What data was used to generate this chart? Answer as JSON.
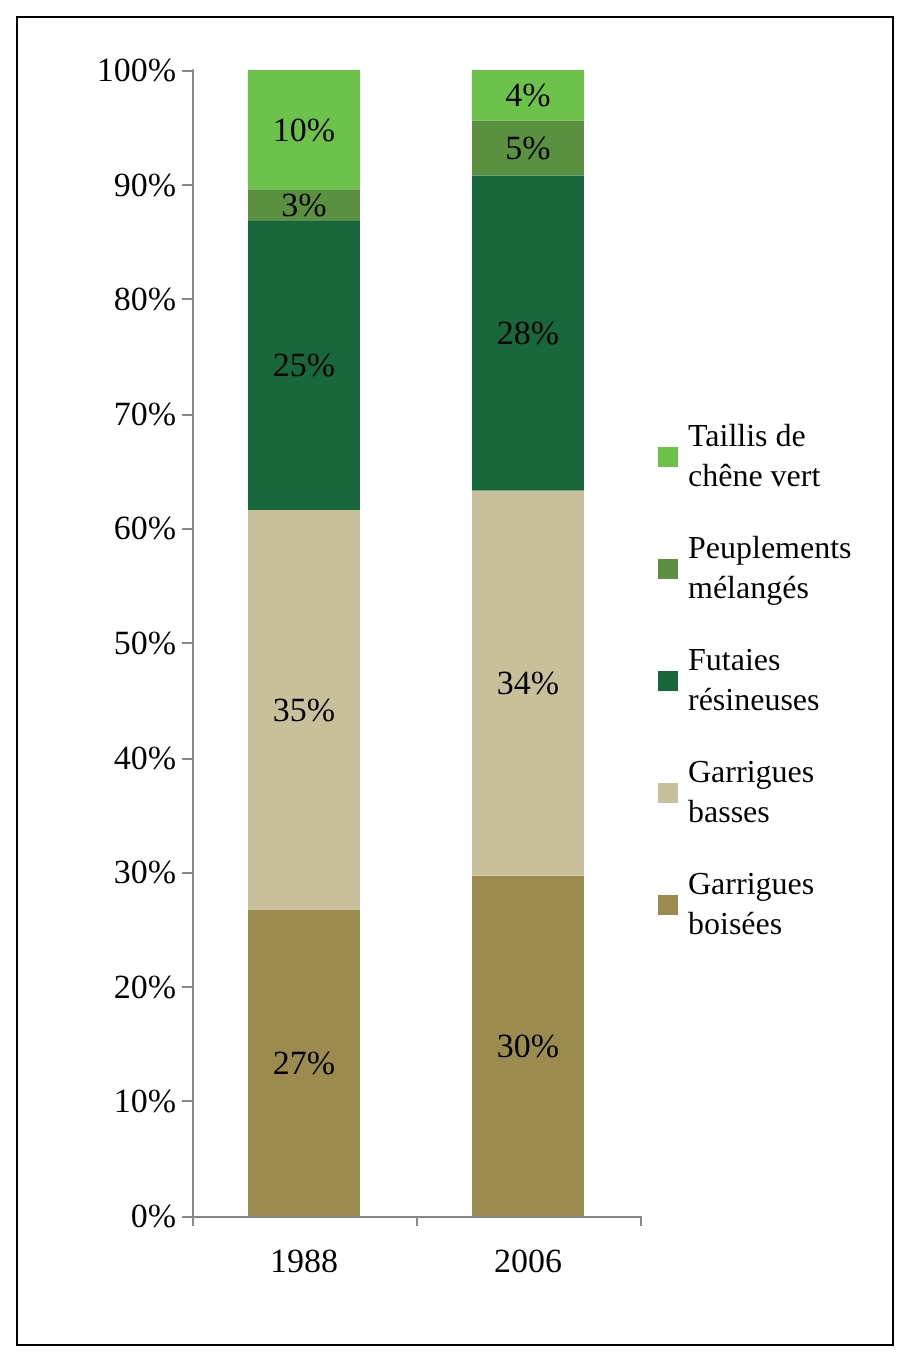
{
  "chart_data": {
    "type": "bar",
    "stacked": true,
    "categories": [
      "1988",
      "2006"
    ],
    "series": [
      {
        "name": "Garrigues boisées",
        "color": "#9b8b4e",
        "values": [
          26.7,
          29.7
        ],
        "value_labels": [
          "27%",
          "30%"
        ]
      },
      {
        "name": "Garrigues basses",
        "color": "#c8c09a",
        "values": [
          34.9,
          33.6
        ],
        "value_labels": [
          "35%",
          "34%"
        ]
      },
      {
        "name": "Futaies résineuses",
        "color": "#17673a",
        "values": [
          25.3,
          27.5
        ],
        "value_labels": [
          "25%",
          "28%"
        ]
      },
      {
        "name": "Peuplements mélangés",
        "color": "#5a9040",
        "values": [
          2.7,
          4.8
        ],
        "value_labels": [
          "3%",
          "5%"
        ]
      },
      {
        "name": "Taillis de chêne vert",
        "color": "#6cc24a",
        "values": [
          10.4,
          4.4
        ],
        "value_labels": [
          "10%",
          "4%"
        ]
      }
    ],
    "ylim": [
      0,
      100
    ],
    "yticks": [
      {
        "value": 0,
        "label": "0%"
      },
      {
        "value": 10,
        "label": "10%"
      },
      {
        "value": 20,
        "label": "20%"
      },
      {
        "value": 30,
        "label": "30%"
      },
      {
        "value": 40,
        "label": "40%"
      },
      {
        "value": 50,
        "label": "50%"
      },
      {
        "value": 60,
        "label": "60%"
      },
      {
        "value": 70,
        "label": "70%"
      },
      {
        "value": 80,
        "label": "80%"
      },
      {
        "value": 90,
        "label": "90%"
      },
      {
        "value": 100,
        "label": "100%"
      }
    ],
    "grid": false,
    "legend": "right"
  }
}
